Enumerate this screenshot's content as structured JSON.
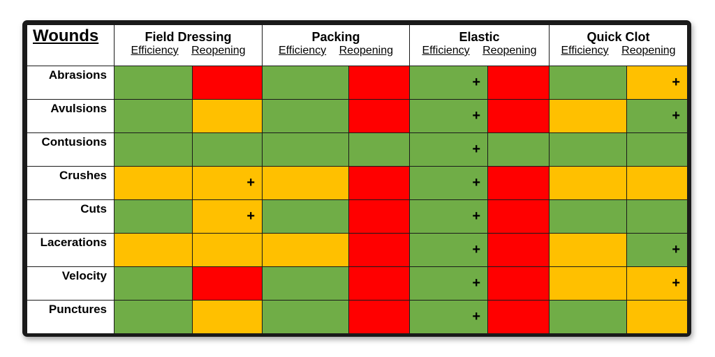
{
  "title": "Wounds",
  "groups": [
    {
      "name": "Field Dressing",
      "sub": [
        "Efficiency",
        "Reopening"
      ]
    },
    {
      "name": "Packing",
      "sub": [
        "Efficiency",
        "Reopening"
      ]
    },
    {
      "name": "Elastic",
      "sub": [
        "Efficiency",
        "Reopening"
      ]
    },
    {
      "name": "Quick Clot",
      "sub": [
        "Efficiency",
        "Reopening"
      ]
    }
  ],
  "colors": {
    "green": "#70ad47",
    "yellow": "#ffc000",
    "red": "#ff0000"
  },
  "plus_symbol": "+",
  "rows": [
    {
      "label": "Abrasions",
      "cells": [
        [
          "g",
          ""
        ],
        [
          "r",
          ""
        ],
        [
          "g",
          ""
        ],
        [
          "r",
          ""
        ],
        [
          "g",
          "+"
        ],
        [
          "r",
          ""
        ],
        [
          "g",
          ""
        ],
        [
          "y",
          "+"
        ]
      ]
    },
    {
      "label": "Avulsions",
      "cells": [
        [
          "g",
          ""
        ],
        [
          "y",
          ""
        ],
        [
          "g",
          ""
        ],
        [
          "r",
          ""
        ],
        [
          "g",
          "+"
        ],
        [
          "r",
          ""
        ],
        [
          "y",
          ""
        ],
        [
          "g",
          "+"
        ]
      ]
    },
    {
      "label": "Contusions",
      "cells": [
        [
          "g",
          ""
        ],
        [
          "g",
          ""
        ],
        [
          "g",
          ""
        ],
        [
          "g",
          ""
        ],
        [
          "g",
          "+"
        ],
        [
          "g",
          ""
        ],
        [
          "g",
          ""
        ],
        [
          "g",
          ""
        ]
      ]
    },
    {
      "label": "Crushes",
      "cells": [
        [
          "y",
          ""
        ],
        [
          "y",
          "+"
        ],
        [
          "y",
          ""
        ],
        [
          "r",
          ""
        ],
        [
          "g",
          "+"
        ],
        [
          "r",
          ""
        ],
        [
          "y",
          ""
        ],
        [
          "y",
          ""
        ]
      ]
    },
    {
      "label": "Cuts",
      "cells": [
        [
          "g",
          ""
        ],
        [
          "y",
          "+"
        ],
        [
          "g",
          ""
        ],
        [
          "r",
          ""
        ],
        [
          "g",
          "+"
        ],
        [
          "r",
          ""
        ],
        [
          "g",
          ""
        ],
        [
          "g",
          ""
        ]
      ]
    },
    {
      "label": "Lacerations",
      "cells": [
        [
          "y",
          ""
        ],
        [
          "y",
          ""
        ],
        [
          "y",
          ""
        ],
        [
          "r",
          ""
        ],
        [
          "g",
          "+"
        ],
        [
          "r",
          ""
        ],
        [
          "y",
          ""
        ],
        [
          "g",
          "+"
        ]
      ]
    },
    {
      "label": "Velocity",
      "cells": [
        [
          "g",
          ""
        ],
        [
          "r",
          ""
        ],
        [
          "g",
          ""
        ],
        [
          "r",
          ""
        ],
        [
          "g",
          "+"
        ],
        [
          "r",
          ""
        ],
        [
          "y",
          ""
        ],
        [
          "y",
          "+"
        ]
      ]
    },
    {
      "label": "Punctures",
      "cells": [
        [
          "g",
          ""
        ],
        [
          "y",
          ""
        ],
        [
          "g",
          ""
        ],
        [
          "r",
          ""
        ],
        [
          "g",
          "+"
        ],
        [
          "r",
          ""
        ],
        [
          "g",
          ""
        ],
        [
          "y",
          ""
        ]
      ]
    }
  ]
}
